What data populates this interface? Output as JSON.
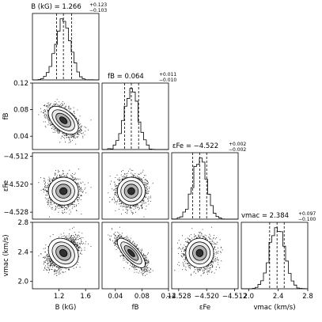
{
  "chart_data": {
    "type": "corner",
    "parameters": [
      {
        "key": "B",
        "axis_label": "B (kG)",
        "title": "B (kG) = 1.266",
        "median": 1.266,
        "err_plus": "+0.123",
        "err_minus": "−0.103",
        "range": [
          0.8,
          1.8
        ],
        "ticks": [
          1.2,
          1.6
        ],
        "tick_labels": [
          "1.2",
          "1.6"
        ],
        "sigma": 0.113
      },
      {
        "key": "fB",
        "axis_label": "fB",
        "title": "fB = 0.064",
        "median": 0.064,
        "err_plus": "+0.011",
        "err_minus": "−0.010",
        "range": [
          0.02,
          0.12
        ],
        "ticks": [
          0.04,
          0.08,
          0.12
        ],
        "tick_labels": [
          "0.04",
          "0.08",
          "0.12"
        ],
        "sigma": 0.0105
      },
      {
        "key": "eFe",
        "axis_label": "εFe",
        "title": "εFe = −4.522",
        "median": -4.522,
        "err_plus": "+0.002",
        "err_minus": "−0.002",
        "range": [
          -4.53,
          -4.511
        ],
        "ticks": [
          -4.528,
          -4.52,
          -4.512
        ],
        "tick_labels": [
          "−4.528",
          "−4.520",
          "−4.512"
        ],
        "sigma": 0.002
      },
      {
        "key": "vmac",
        "axis_label": "vmac (km/s)",
        "title": "vmac = 2.384",
        "median": 2.384,
        "err_plus": "+0.097",
        "err_minus": "−0.100",
        "range": [
          1.9,
          2.8
        ],
        "ticks": [
          2.0,
          2.4,
          2.8
        ],
        "tick_labels": [
          "2.0",
          "2.4",
          "2.8"
        ],
        "sigma": 0.1
      }
    ],
    "correlations": {
      "fB|B": -0.5,
      "eFe|B": 0.0,
      "eFe|fB": 0.0,
      "vmac|B": -0.2,
      "vmac|fB": -0.75,
      "vmac|eFe": 0.0
    },
    "quantile_lines": "16%, 50%, 84% dashed",
    "contours": "density contours over scatter"
  }
}
